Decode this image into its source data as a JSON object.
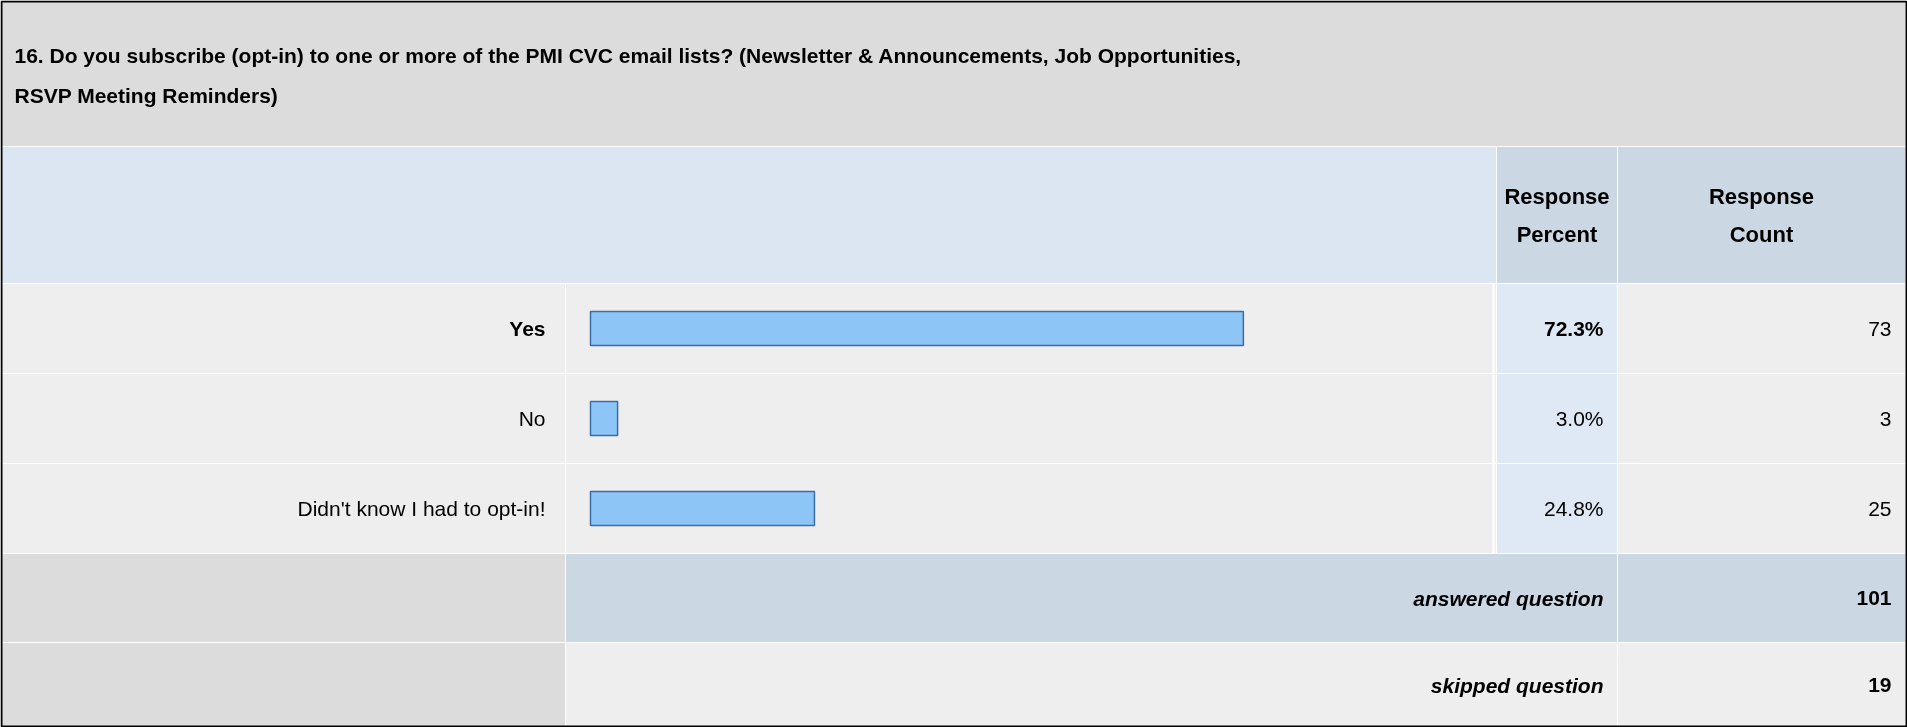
{
  "chart_data": {
    "type": "bar",
    "orientation": "horizontal",
    "title": "16. Do you subscribe (opt-in) to one or more of the PMI CVC email lists? (Newsletter & Announcements, Job Opportunities, RSVP Meeting Reminders)",
    "categories": [
      "Yes",
      "No",
      "Didn't know I had to opt-in!"
    ],
    "values": [
      72.3,
      3.0,
      24.8
    ],
    "value_labels": [
      "72.3%",
      "3.0%",
      "24.8%"
    ],
    "color": "#8ec5f7",
    "xlim": [
      0,
      100
    ],
    "tick_labels": false,
    "annotations": [
      "Response Percent",
      "Response Count",
      "73",
      "3",
      "25",
      "answered question",
      "101",
      "skipped question",
      "19"
    ]
  }
}
